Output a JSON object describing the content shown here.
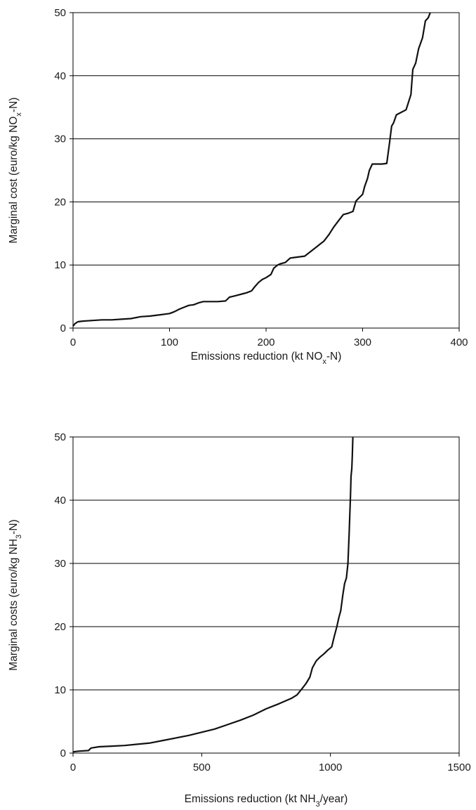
{
  "chart_data": [
    {
      "type": "line",
      "xlabel": {
        "pre": "Emissions reduction (kt NO",
        "sub": "x",
        "post": "-N)"
      },
      "ylabel": {
        "pre": "Marginal cost (euro/kg NO",
        "sub": "x",
        "post": "-N)"
      },
      "xlim": [
        0,
        400
      ],
      "ylim": [
        0,
        50
      ],
      "xticks": [
        0,
        100,
        200,
        300,
        400
      ],
      "yticks": [
        0,
        10,
        20,
        30,
        40,
        50
      ],
      "grid": "horizontal",
      "x": [
        0,
        2,
        5,
        10,
        20,
        30,
        40,
        50,
        60,
        70,
        80,
        90,
        100,
        105,
        110,
        115,
        120,
        125,
        130,
        135,
        140,
        150,
        158,
        162,
        165,
        170,
        175,
        180,
        185,
        188,
        192,
        196,
        200,
        205,
        208,
        212,
        215,
        220,
        225,
        230,
        240,
        245,
        250,
        255,
        260,
        265,
        270,
        275,
        280,
        285,
        290,
        293,
        296,
        300,
        302,
        305,
        307,
        310,
        315,
        320,
        325,
        328,
        330,
        332,
        335,
        340,
        345,
        350,
        352,
        355,
        358,
        362,
        365,
        368,
        370
      ],
      "y": [
        0.3,
        0.7,
        1.0,
        1.1,
        1.2,
        1.3,
        1.3,
        1.4,
        1.5,
        1.8,
        1.9,
        2.1,
        2.3,
        2.6,
        3.0,
        3.3,
        3.6,
        3.7,
        4.0,
        4.2,
        4.2,
        4.2,
        4.3,
        4.9,
        5.0,
        5.2,
        5.4,
        5.6,
        5.9,
        6.5,
        7.2,
        7.7,
        8.0,
        8.5,
        9.5,
        10.0,
        10.2,
        10.4,
        11.1,
        11.2,
        11.4,
        12.0,
        12.6,
        13.2,
        13.8,
        14.8,
        16.0,
        17.0,
        18.0,
        18.2,
        18.5,
        20.1,
        20.6,
        21.2,
        22.4,
        23.7,
        25.0,
        26.0,
        26.0,
        26.0,
        26.1,
        29.5,
        32.0,
        32.5,
        33.8,
        34.2,
        34.6,
        37.0,
        41.0,
        42.0,
        44.3,
        46.0,
        48.7,
        49.2,
        50.0
      ]
    },
    {
      "type": "line",
      "xlabel": {
        "pre": "Emissions reduction (kt NH",
        "sub": "3",
        "post": "/year)"
      },
      "ylabel": {
        "pre": "Marginal costs (euro/kg NH",
        "sub": "3",
        "post": "-N)"
      },
      "xlim": [
        0,
        1500
      ],
      "ylim": [
        0,
        50
      ],
      "xticks": [
        0,
        500,
        1000,
        1500
      ],
      "yticks": [
        0,
        10,
        20,
        30,
        40,
        50
      ],
      "grid": "horizontal",
      "x": [
        0,
        20,
        60,
        70,
        100,
        150,
        200,
        250,
        300,
        350,
        400,
        450,
        500,
        550,
        600,
        650,
        700,
        750,
        800,
        850,
        870,
        890,
        905,
        920,
        930,
        945,
        960,
        975,
        990,
        1005,
        1015,
        1025,
        1033,
        1040,
        1048,
        1055,
        1062,
        1068,
        1073,
        1078,
        1080,
        1083,
        1085,
        1087
      ],
      "y": [
        0.2,
        0.3,
        0.4,
        0.8,
        1.0,
        1.1,
        1.2,
        1.4,
        1.6,
        2.0,
        2.4,
        2.8,
        3.3,
        3.8,
        4.5,
        5.2,
        6.0,
        7.0,
        7.8,
        8.7,
        9.2,
        10.2,
        11.0,
        12.0,
        13.5,
        14.6,
        15.2,
        15.7,
        16.3,
        16.8,
        18.5,
        20.0,
        21.5,
        22.5,
        25.0,
        26.8,
        27.7,
        30.0,
        35.0,
        41.0,
        43.8,
        45.0,
        47.0,
        50.0
      ]
    }
  ]
}
